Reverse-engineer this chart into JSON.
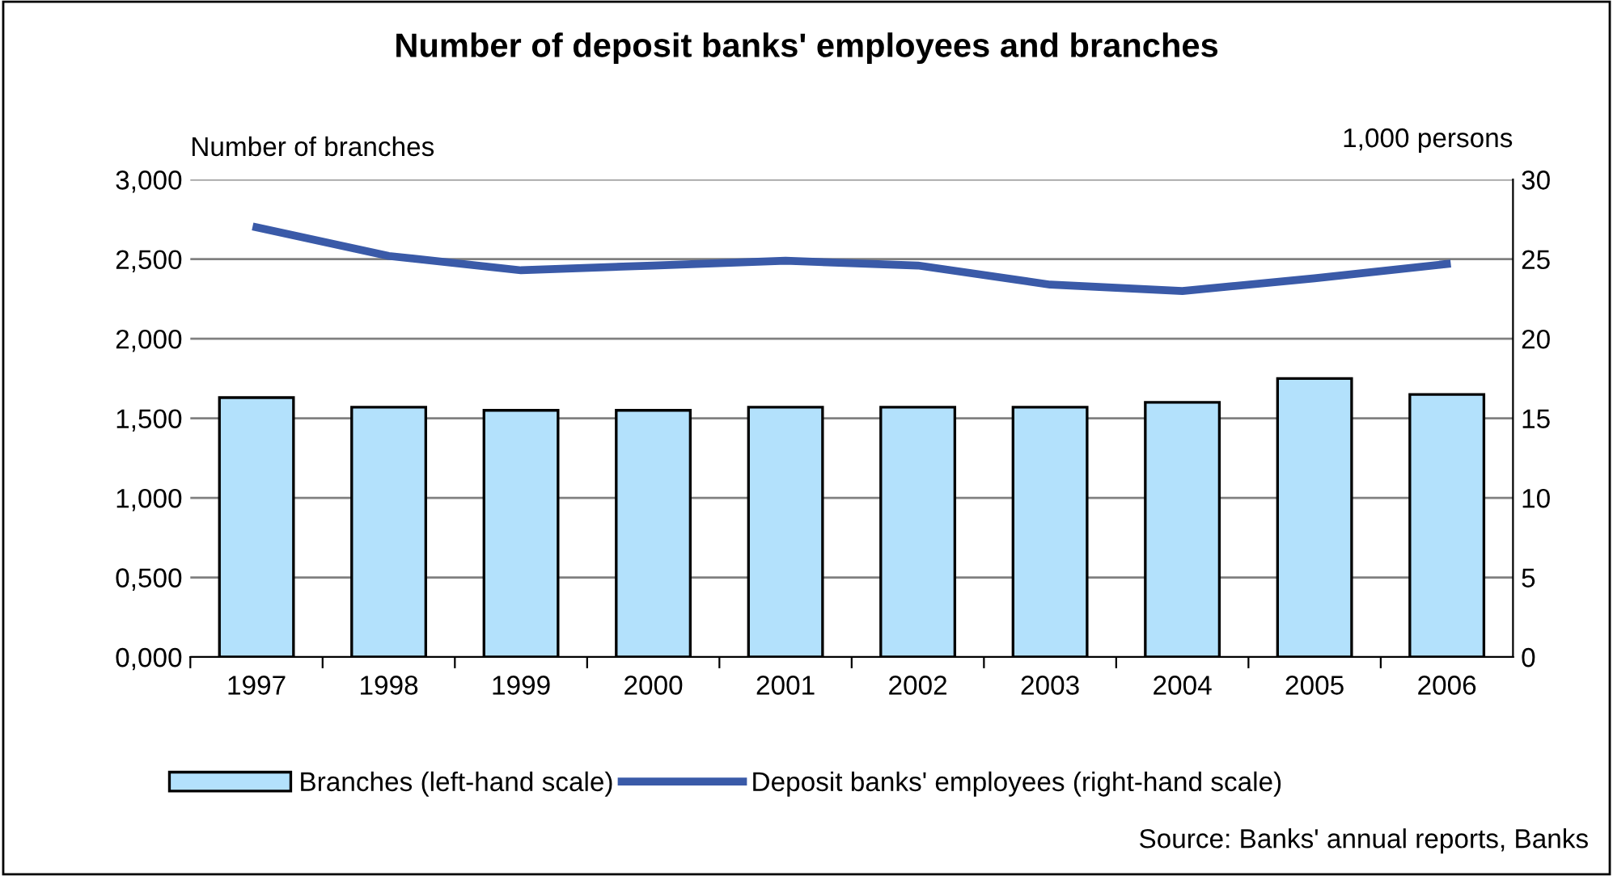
{
  "chart_data": {
    "type": "bar",
    "title": "Number of deposit banks' employees and branches",
    "ylabel": "Number of branches",
    "y2label": "1,000 persons",
    "categories": [
      "1997",
      "1998",
      "1999",
      "2000",
      "2001",
      "2002",
      "2003",
      "2004",
      "2005",
      "2006"
    ],
    "series": [
      {
        "name": "Branches (left-hand scale)",
        "color": "#b3e1fc",
        "values": [
          1.63,
          1.57,
          1.55,
          1.55,
          1.57,
          1.57,
          1.57,
          1.6,
          1.75,
          1.65
        ]
      },
      {
        "name": "Deposit banks' employees (right-hand scale)",
        "type": "line",
        "axis": "y2",
        "color": "#3a5aa8",
        "values": [
          27.0,
          25.2,
          24.3,
          24.6,
          24.9,
          24.6,
          23.4,
          23.0,
          23.8,
          24.7
        ]
      }
    ],
    "ylim": [
      0,
      3
    ],
    "yticks": [
      {
        "value": 0,
        "label": "0,000"
      },
      {
        "value": 0.5,
        "label": "0,500"
      },
      {
        "value": 1,
        "label": "1,000"
      },
      {
        "value": 1.5,
        "label": "1,500"
      },
      {
        "value": 2,
        "label": "2,000"
      },
      {
        "value": 2.5,
        "label": "2,500"
      },
      {
        "value": 3,
        "label": "3,000"
      }
    ],
    "y2lim": [
      0,
      30
    ],
    "y2ticks": [
      0,
      5,
      10,
      15,
      20,
      25,
      30
    ],
    "grid": "y",
    "legend": "bottom",
    "marker": "none",
    "annotations": [
      "Source: Banks' annual reports, Banks"
    ]
  }
}
